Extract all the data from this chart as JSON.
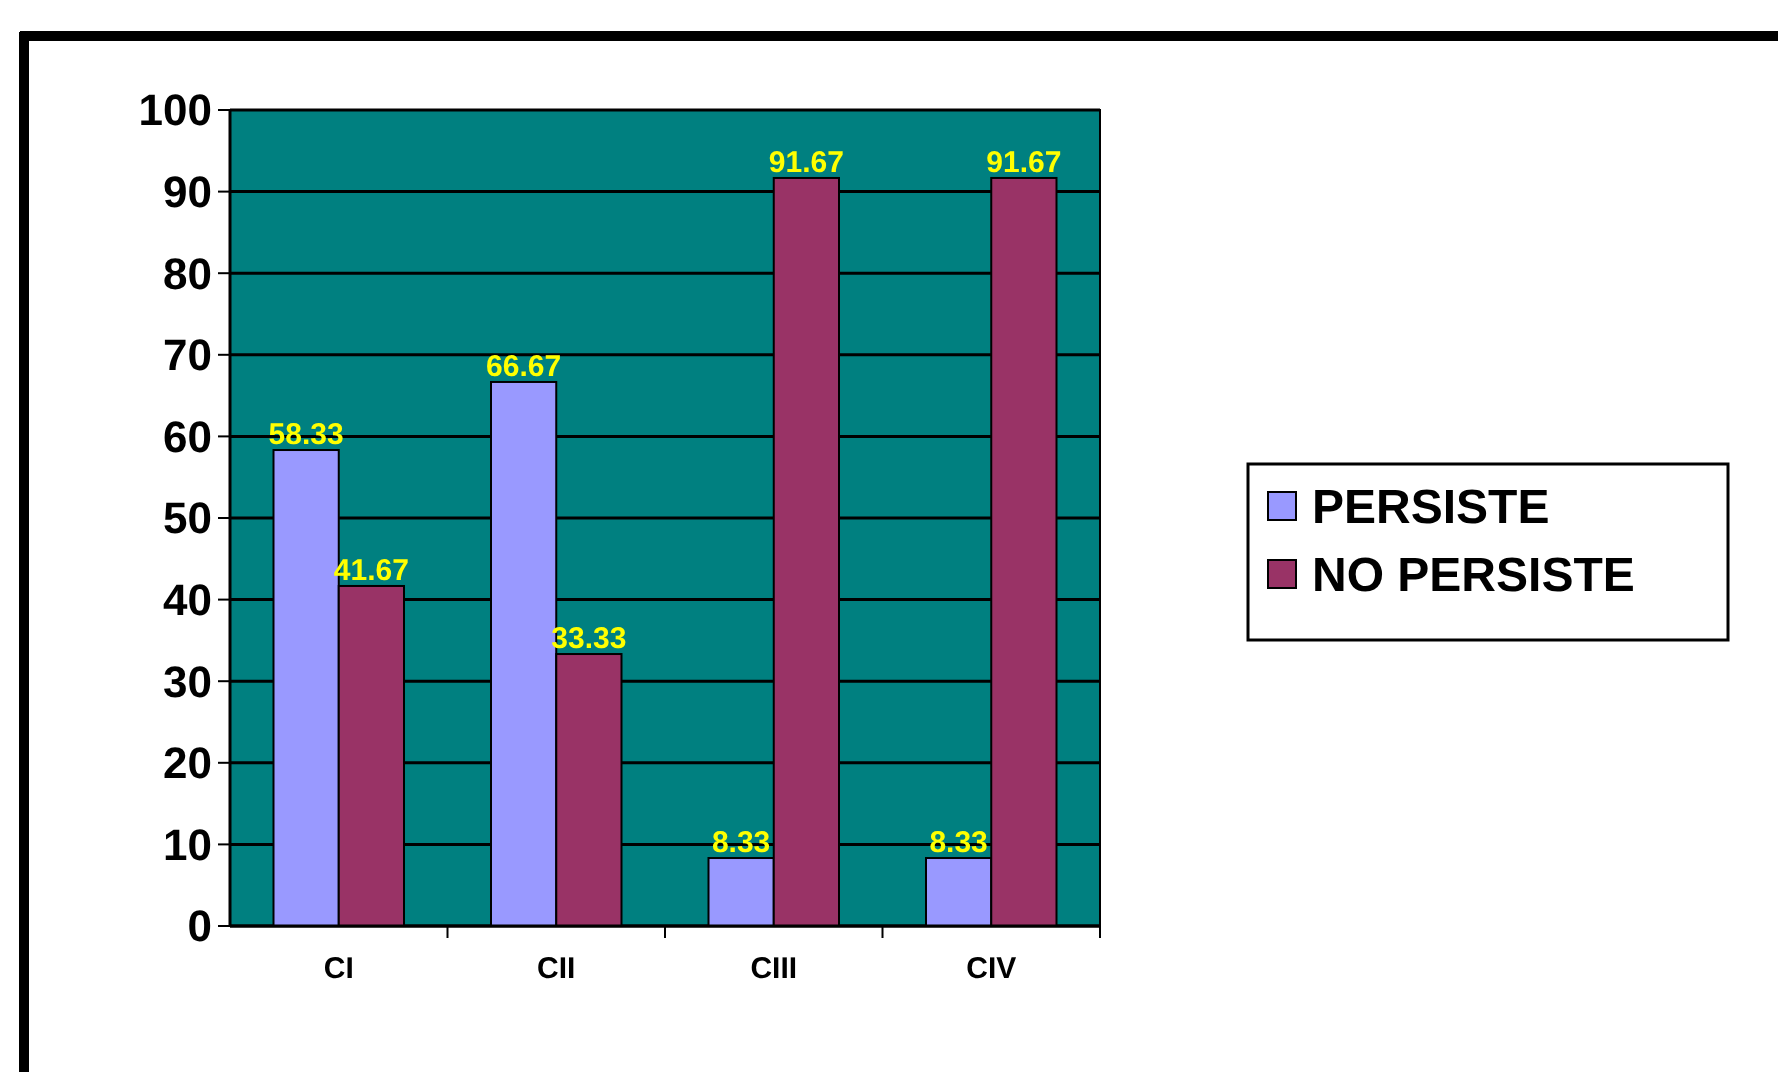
{
  "chart_data": {
    "type": "bar",
    "categories": [
      "CI",
      "CII",
      "CIII",
      "CIV"
    ],
    "series": [
      {
        "name": "PERSISTE",
        "color": "#9999ff",
        "values": [
          58.33,
          66.67,
          8.33,
          8.33
        ]
      },
      {
        "name": "NO PERSISTE",
        "color": "#993366",
        "values": [
          41.67,
          33.33,
          91.67,
          91.67
        ]
      }
    ],
    "ylim": [
      0,
      100
    ],
    "yticks": [
      0,
      10,
      20,
      30,
      40,
      50,
      60,
      70,
      80,
      90,
      100
    ],
    "grid": "y",
    "legend": "right",
    "data_labels": true
  }
}
